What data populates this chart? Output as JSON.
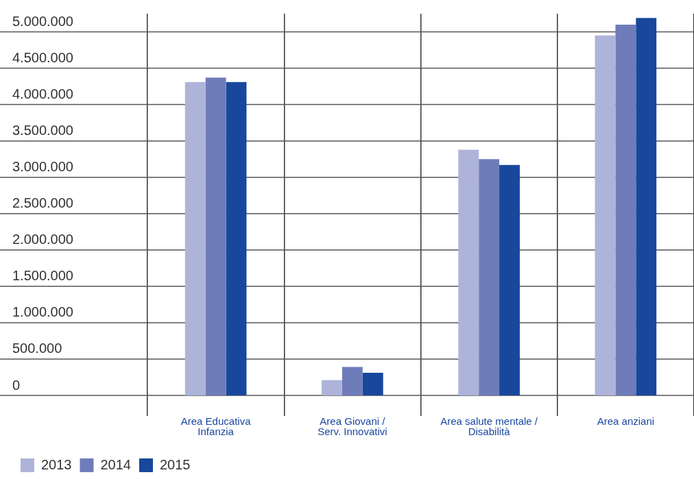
{
  "chart_data": {
    "type": "bar",
    "categories": [
      "Area Educativa Infanzia",
      "Area Giovani / Serv. Innovativi",
      "Area salute mentale / Disabilità",
      "Area anziani"
    ],
    "series": [
      {
        "name": "2013",
        "color": "#aeb4d9",
        "values": [
          4310000,
          210000,
          3380000,
          4950000
        ]
      },
      {
        "name": "2014",
        "color": "#6f7cba",
        "values": [
          4370000,
          390000,
          3250000,
          5100000
        ]
      },
      {
        "name": "2015",
        "color": "#18479c",
        "values": [
          4310000,
          310000,
          3170000,
          5190000
        ]
      }
    ],
    "ylim": [
      0,
      5250000
    ],
    "yticks": [
      {
        "value": 0,
        "label": "0"
      },
      {
        "value": 500000,
        "label": "500.000"
      },
      {
        "value": 1000000,
        "label": "1.000.000"
      },
      {
        "value": 1500000,
        "label": "1.500.000"
      },
      {
        "value": 2000000,
        "label": "2.000.000"
      },
      {
        "value": 2500000,
        "label": "2.500.000"
      },
      {
        "value": 3000000,
        "label": "3.000.000"
      },
      {
        "value": 3500000,
        "label": "3.500.000"
      },
      {
        "value": 4000000,
        "label": "4.000.000"
      },
      {
        "value": 4500000,
        "label": "4.500.000"
      },
      {
        "value": 5000000,
        "label": "5.000.000"
      }
    ],
    "grid": true,
    "legend": "bottom left"
  }
}
